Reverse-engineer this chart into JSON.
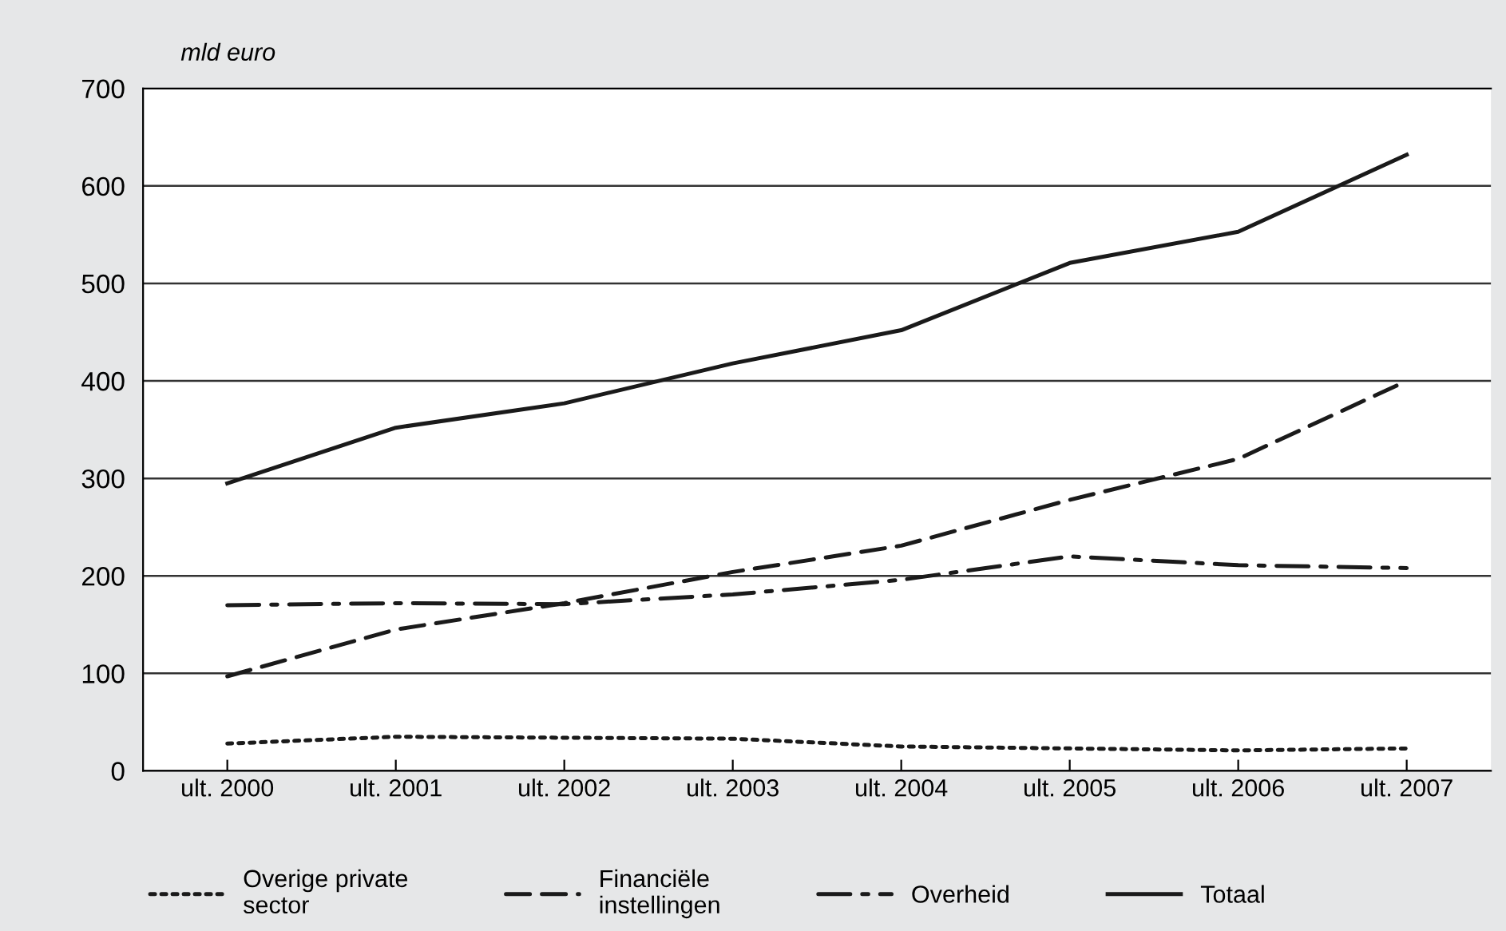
{
  "chart_data": {
    "type": "line",
    "ylabel": "mld euro",
    "categories": [
      "ult. 2000",
      "ult. 2001",
      "ult. 2002",
      "ult. 2003",
      "ult. 2004",
      "ult. 2005",
      "ult. 2006",
      "ult. 2007"
    ],
    "series": [
      {
        "name": "Overige private\nsector",
        "color": "#1a1a1a",
        "line_style": "dotted",
        "values": [
          28,
          35,
          34,
          33,
          25,
          23,
          21,
          23
        ]
      },
      {
        "name": "Financiële\ninstellingen",
        "color": "#1a1a1a",
        "line_style": "dashed",
        "values": [
          97,
          145,
          172,
          204,
          231,
          278,
          320,
          400
        ]
      },
      {
        "name": "Overheid",
        "color": "#1a1a1a",
        "line_style": "dashdot",
        "values": [
          170,
          172,
          171,
          181,
          196,
          220,
          211,
          208
        ]
      },
      {
        "name": "Totaal",
        "color": "#1a1a1a",
        "line_style": "solid",
        "values": [
          295,
          352,
          377,
          418,
          452,
          521,
          553,
          632
        ]
      }
    ],
    "ylim": [
      0,
      700
    ],
    "yticks": [
      0,
      100,
      200,
      300,
      400,
      500,
      600,
      700
    ],
    "grid": "y",
    "legend": "bottom",
    "marker": "none"
  }
}
